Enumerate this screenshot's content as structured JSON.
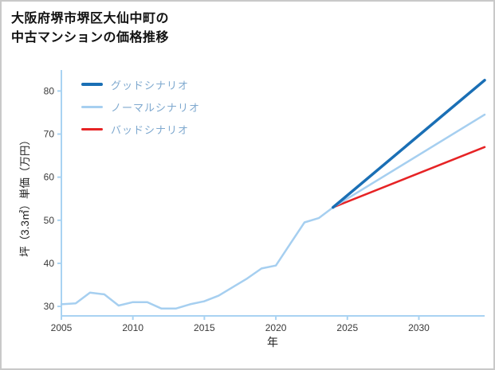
{
  "page": {
    "title_lines": [
      "大阪府堺市堺区大仙中町の",
      "中古マンションの価格推移"
    ]
  },
  "chart_data": {
    "type": "line",
    "title": "大阪府堺市堺区大仙中町の中古マンションの価格推移",
    "xlabel": "年",
    "ylabel": "坪（3.3㎡）単価（万円）",
    "xlim": [
      2005,
      2034.6
    ],
    "ylim": [
      27.8,
      84.5
    ],
    "xticks": [
      2005,
      2010,
      2015,
      2020,
      2025,
      2030
    ],
    "yticks": [
      30,
      40,
      50,
      60,
      70,
      80
    ],
    "grid": false,
    "legend_position": "upper-left",
    "axis_color": "#a9d3f2",
    "legend_text_color": "#7fa9cf",
    "series": [
      {
        "name": "グッドシナリオ",
        "color": "#1a6fb5",
        "width": 3.5,
        "x": [
          2024,
          2034.6
        ],
        "y": [
          53,
          82.5
        ]
      },
      {
        "name": "ノーマルシナリオ",
        "color": "#a6cff0",
        "width": 2.5,
        "x": [
          2005,
          2006,
          2007,
          2008,
          2009,
          2010,
          2011,
          2012,
          2013,
          2014,
          2015,
          2016,
          2017,
          2018,
          2019,
          2020,
          2021,
          2022,
          2023,
          2024,
          2034.6
        ],
        "y": [
          30.5,
          30.7,
          33.2,
          32.8,
          30.2,
          31,
          31,
          29.5,
          29.5,
          30.5,
          31.2,
          32.5,
          34.5,
          36.5,
          38.8,
          39.5,
          44.5,
          49.5,
          50.5,
          53,
          74.5
        ]
      },
      {
        "name": "バッドシナリオ",
        "color": "#e62325",
        "width": 2.5,
        "x": [
          2024,
          2034.6
        ],
        "y": [
          53,
          67
        ]
      }
    ]
  }
}
